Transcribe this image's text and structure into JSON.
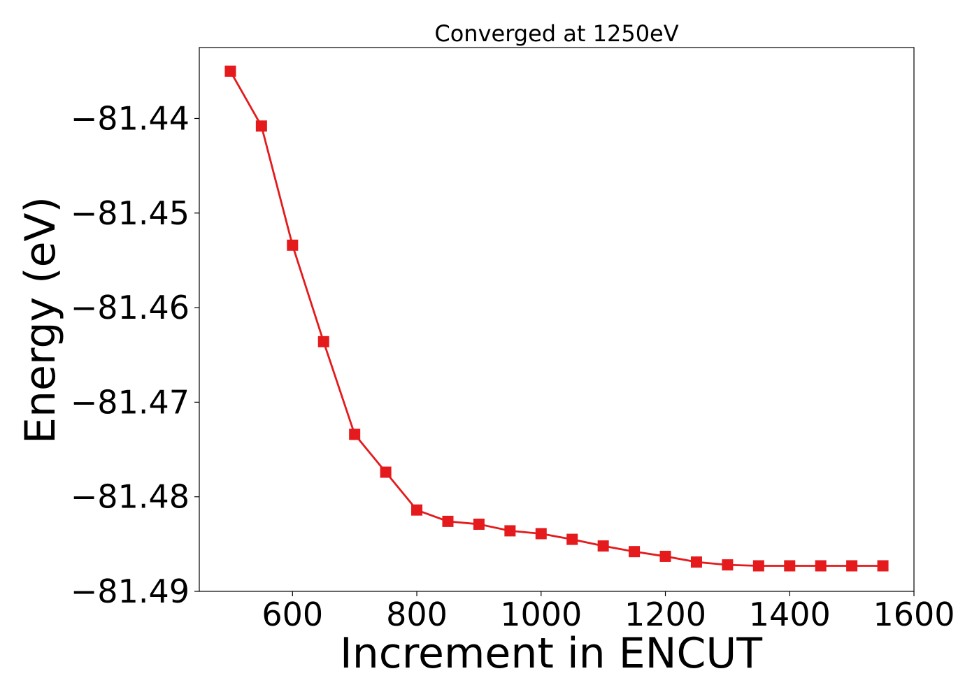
{
  "chart_data": {
    "type": "line",
    "title": "Converged at 1250eV",
    "xlabel": "Increment in ENCUT",
    "ylabel": "Energy (eV)",
    "xlim": [
      450,
      1600
    ],
    "ylim": [
      -81.49,
      -81.4325
    ],
    "xticks": [
      600,
      800,
      1000,
      1200,
      1400,
      1600
    ],
    "yticks": [
      -81.44,
      -81.45,
      -81.46,
      -81.47,
      -81.48,
      -81.49
    ],
    "ytick_labels": [
      "−81.44",
      "−81.45",
      "−81.46",
      "−81.47",
      "−81.48",
      "−81.49"
    ],
    "grid": false,
    "legend": "none",
    "series": [
      {
        "color": "#e41a1c",
        "marker": "square",
        "x": [
          500,
          550,
          600,
          650,
          700,
          750,
          800,
          850,
          900,
          950,
          1000,
          1050,
          1100,
          1150,
          1200,
          1250,
          1300,
          1350,
          1400,
          1450,
          1500,
          1550
        ],
        "y": [
          -81.435,
          -81.4408,
          -81.4534,
          -81.4636,
          -81.4734,
          -81.4774,
          -81.4814,
          -81.4826,
          -81.4829,
          -81.4836,
          -81.4839,
          -81.4845,
          -81.4852,
          -81.4858,
          -81.4863,
          -81.4869,
          -81.4872,
          -81.4873,
          -81.4873,
          -81.4873,
          -81.4873,
          -81.4873
        ]
      }
    ]
  }
}
